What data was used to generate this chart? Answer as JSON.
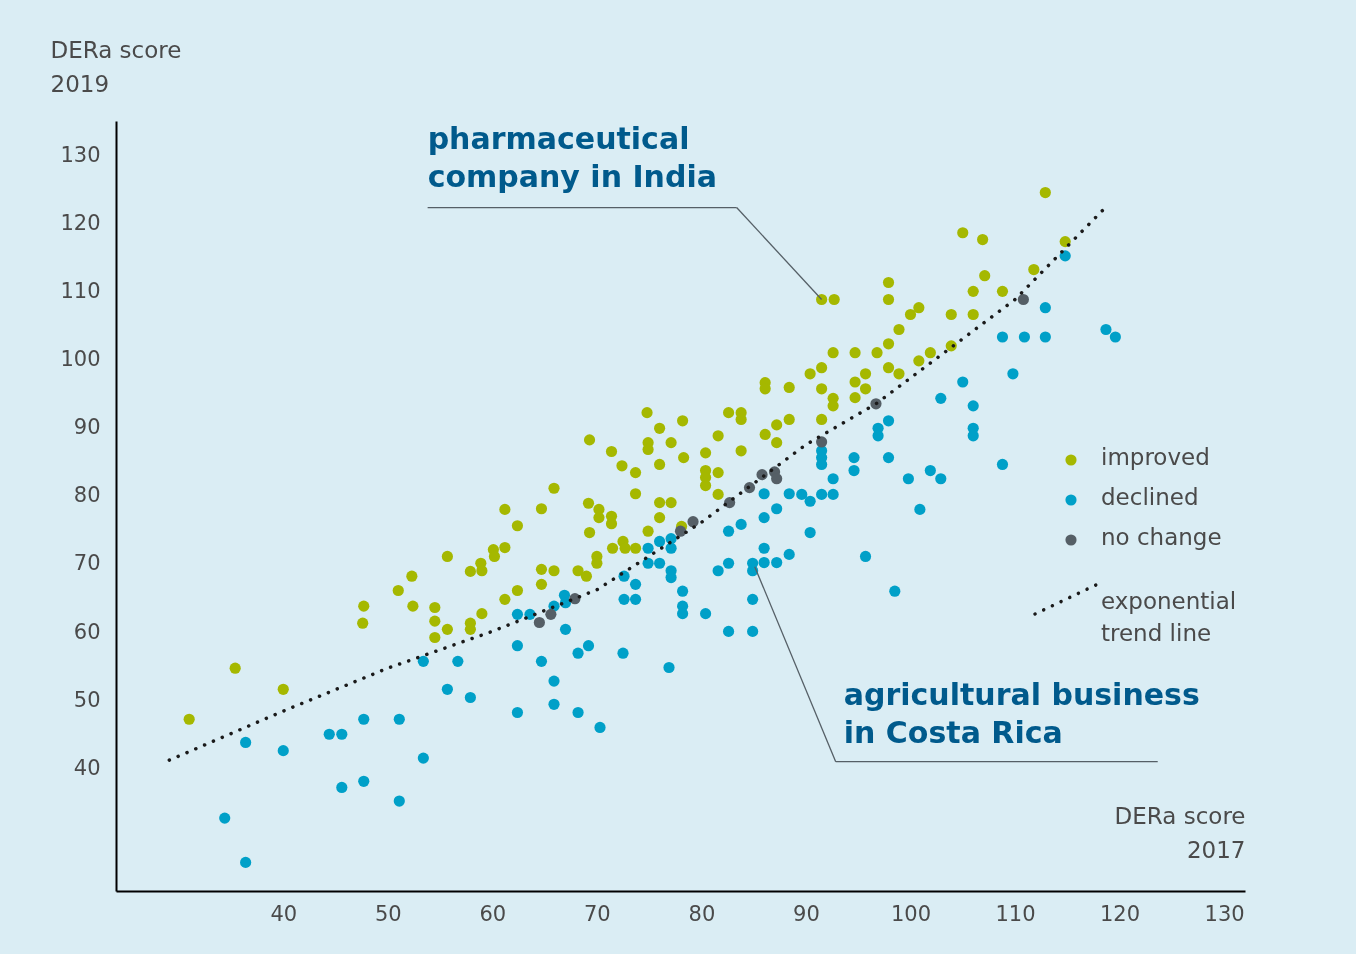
{
  "chart_data": {
    "type": "scatter",
    "xlabel": "DERa score\n2017",
    "ylabel": "DERa score\n2019",
    "xlim": [
      24,
      132
    ],
    "ylim": [
      22,
      135
    ],
    "xticks": [
      40,
      50,
      60,
      70,
      80,
      90,
      100,
      110,
      120,
      130
    ],
    "yticks": [
      40,
      50,
      60,
      70,
      80,
      90,
      100,
      110,
      120,
      130
    ],
    "legend": "right",
    "marker": "circle",
    "annotations": [
      {
        "text": "pharmaceutical\ncompany in India",
        "x": 91.5,
        "y": 108.8
      },
      {
        "text": "agricultural business\nin Costa Rica",
        "x": 85.1,
        "y": 69.6
      }
    ],
    "series": [
      {
        "name": "improved",
        "color": "#a5b800",
        "x": [
          31.0,
          35.4,
          40,
          47.7,
          47.6,
          51,
          52.3,
          52.4,
          54.5,
          54.5,
          54.5,
          55.7,
          55.7,
          57.9,
          57.9,
          57.9,
          58.9,
          59,
          59,
          60.1,
          60.2,
          61.2,
          61.2,
          61.2,
          62.4,
          62.4,
          64.7,
          64.7,
          64.7,
          65.9,
          65.9,
          68.2,
          69,
          69.3,
          69.2,
          69.3,
          70,
          70,
          70.2,
          70.2,
          71.4,
          71.4,
          71.4,
          71.5,
          72.4,
          72.5,
          72.7,
          73.7,
          73.7,
          73.7,
          74.8,
          74.9,
          74.9,
          74.9,
          76,
          76,
          76,
          76,
          77.1,
          77.1,
          78.2,
          78.3,
          78.1,
          80.4,
          80.4,
          80.4,
          80.4,
          81.6,
          81.6,
          81.6,
          82.6,
          83.8,
          83.8,
          83.8,
          86.1,
          86.1,
          86.1,
          87.2,
          87.2,
          88.4,
          88.4,
          90.4,
          91.5,
          92.7,
          91.5,
          91.5,
          91.5,
          92.6,
          92.6,
          92.6,
          94.7,
          94.7,
          94.7,
          95.7,
          95.7,
          96.8,
          97.9,
          97.9,
          97.9,
          97.9,
          98.9,
          98.9,
          100,
          100.8,
          100.8,
          101.9,
          103.9,
          103.9,
          105,
          106,
          106,
          106.9,
          107.1,
          108.8,
          111.8,
          112.9,
          114.8
        ],
        "values": [
          47.2,
          54.7,
          51.6,
          63.8,
          61.3,
          66.1,
          68.2,
          63.8,
          63.6,
          61.6,
          59.2,
          71.1,
          60.4,
          68.9,
          61.3,
          60.4,
          70.1,
          69,
          62.7,
          72.1,
          71.1,
          78,
          72.4,
          64.8,
          75.6,
          66.1,
          78.1,
          69.2,
          67,
          81.1,
          69,
          69,
          68.2,
          88.2,
          78.9,
          74.6,
          71.1,
          70.1,
          78,
          76.8,
          86.5,
          77,
          75.9,
          72.3,
          84.4,
          73.3,
          72.3,
          83.4,
          80.3,
          72.3,
          92.2,
          87.8,
          86.8,
          74.8,
          84.6,
          89.9,
          79,
          76.8,
          87.8,
          79,
          91,
          85.6,
          75.5,
          86.3,
          83.7,
          82.7,
          81.5,
          83.4,
          80.2,
          88.8,
          92.2,
          92.2,
          91.2,
          86.6,
          96.6,
          95.7,
          89,
          90.4,
          87.8,
          95.9,
          91.2,
          97.9,
          108.8,
          108.8,
          98.8,
          95.7,
          91.2,
          101,
          94.3,
          93.2,
          101,
          96.7,
          94.4,
          97.9,
          95.7,
          101,
          111.3,
          108.8,
          102.3,
          98.8,
          104.4,
          97.9,
          106.6,
          107.6,
          99.8,
          101,
          106.6,
          102,
          118.6,
          110,
          106.6,
          117.6,
          112.3,
          110,
          113.2,
          124.5,
          117.3
        ]
      },
      {
        "name": "declined",
        "color": "#00a0c8",
        "x": [
          34.4,
          36.4,
          36.4,
          40,
          44.4,
          45.6,
          45.6,
          47.7,
          47.7,
          51.1,
          51.1,
          53.4,
          53.4,
          55.7,
          56.7,
          57.9,
          62.4,
          62.4,
          62.4,
          63.6,
          64.7,
          65.9,
          65.9,
          65.9,
          66.9,
          67,
          67,
          68.2,
          68.2,
          69.2,
          70.3,
          72.5,
          72.6,
          72.6,
          73.7,
          73.7,
          74.9,
          74.9,
          76,
          76,
          76.9,
          77.1,
          77.1,
          77.1,
          77.1,
          78.2,
          78.2,
          78.2,
          80.4,
          81.6,
          82.6,
          82.6,
          82.6,
          83.8,
          84.9,
          84.9,
          84.9,
          84.9,
          86,
          86,
          86,
          86,
          87.2,
          87.2,
          88.4,
          88.4,
          89.6,
          90.4,
          90.4,
          91.5,
          91.5,
          91.5,
          91.5,
          92.6,
          92.6,
          94.6,
          94.6,
          95.7,
          96.9,
          96.9,
          97.9,
          97.9,
          98.5,
          99.8,
          100.9,
          101.9,
          102.9,
          102.9,
          105,
          106,
          106,
          106,
          108.8,
          108.8,
          109.8,
          110.9,
          112.9,
          112.9,
          114.8,
          118.7,
          119.6
        ],
        "values": [
          32.7,
          26.2,
          43.8,
          42.6,
          45,
          45,
          37.2,
          47.2,
          38.1,
          47.2,
          35.2,
          55.7,
          41.5,
          51.6,
          55.7,
          50.4,
          62.6,
          58,
          48.2,
          62.6,
          55.7,
          63.8,
          52.8,
          49.4,
          65.4,
          60.4,
          64.3,
          56.9,
          48.2,
          58,
          46,
          56.9,
          68.2,
          64.8,
          67,
          64.8,
          70.1,
          72.3,
          73.3,
          70.1,
          54.8,
          73.7,
          72.3,
          69,
          68,
          66,
          63.8,
          62.7,
          62.7,
          69,
          74.8,
          70.1,
          60.1,
          75.8,
          70.1,
          69,
          64.8,
          60.1,
          80.3,
          76.8,
          72.3,
          70.2,
          78.1,
          70.2,
          80.3,
          71.4,
          80.2,
          79.2,
          74.6,
          86.6,
          85.6,
          84.6,
          80.2,
          82.5,
          80.2,
          85.6,
          83.7,
          71.1,
          89.9,
          88.8,
          91,
          85.6,
          66,
          82.5,
          78,
          83.7,
          94.3,
          82.5,
          96.7,
          93.2,
          89.9,
          88.8,
          103.3,
          84.6,
          97.9,
          103.3,
          107.6,
          103.3,
          115.2,
          104.4,
          103.3
        ]
      },
      {
        "name": "no change",
        "color": "#555f66",
        "x": [
          64.5,
          65.6,
          67.9,
          78,
          79.2,
          82.7,
          84.6,
          85.8,
          87,
          87.2,
          91.5,
          96.7,
          110.8
        ],
        "values": [
          61.4,
          62.6,
          64.9,
          74.8,
          76.2,
          79,
          81.2,
          83.1,
          83.5,
          82.5,
          87.9,
          93.5,
          108.8
        ]
      },
      {
        "name": "exponential\ntrend line",
        "type": "line",
        "color": "#1a1a1a",
        "line_style": "dotted",
        "marker": "none",
        "x": [
          29.1,
          40,
          50,
          60,
          70,
          80,
          90,
          96.7,
          110,
          118.9
        ],
        "values": [
          41.2,
          48.4,
          54.7,
          60.1,
          66.2,
          76.1,
          87.5,
          93.5,
          108.8,
          122.7
        ]
      }
    ]
  }
}
